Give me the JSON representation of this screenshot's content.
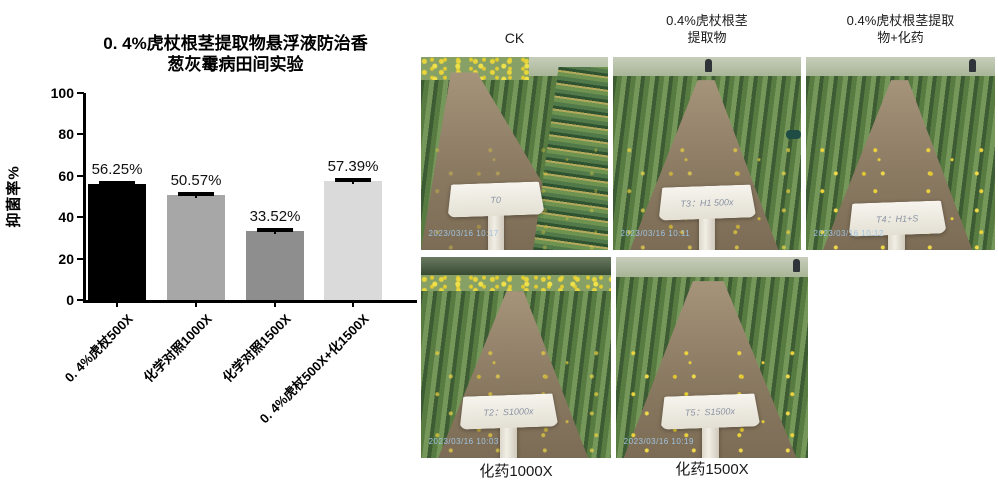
{
  "chart_data": {
    "type": "bar",
    "title": "0. 4%虎杖根茎提取物悬浮液防治香葱灰霉病田间实验",
    "title_lines": [
      "0. 4%虎杖根茎提取物悬浮液防治香",
      "葱灰霉病田间实验"
    ],
    "xlabel": "",
    "ylabel": "抑菌率%",
    "ylim": [
      0,
      100
    ],
    "yticks": [
      0,
      20,
      40,
      60,
      80,
      100
    ],
    "grid": false,
    "legend": "none",
    "categories": [
      "0. 4%虎杖500X",
      "化学对照1000X",
      "化学对照1500X",
      "0. 4%虎杖500X+化1500X"
    ],
    "values": [
      56.25,
      50.57,
      33.52,
      57.39
    ],
    "value_labels": [
      "56.25%",
      "50.57%",
      "33.52%",
      "57.39%"
    ],
    "bar_colors": [
      "#000000",
      "#a7a7a7",
      "#8e8e8e",
      "#dadada"
    ],
    "error_caps": true
  },
  "photos": [
    {
      "caption": "CK",
      "caption_lines": [
        "CK"
      ],
      "tag": "T0",
      "timestamp": "2023/03/16 10:17"
    },
    {
      "caption": "0.4%虎杖根茎提取物",
      "caption_lines": [
        "0.4%虎杖根茎",
        "提取物"
      ],
      "tag": "T3：H1 500x",
      "timestamp": "2023/03/16 10:11"
    },
    {
      "caption": "0.4%虎杖根茎提取物+化药",
      "caption_lines": [
        "0.4%虎杖根茎提取",
        "物+化药"
      ],
      "tag": "T4：H1+S",
      "timestamp": "2023/03/16 10:12"
    },
    {
      "caption": "化药1000X",
      "caption_lines": [
        "化药1000X"
      ],
      "tag": "T2：S1000x",
      "timestamp": "2023/03/16 10:03"
    },
    {
      "caption": "化药1500X",
      "caption_lines": [
        "化药1500X"
      ],
      "tag": "T5：S1500x",
      "timestamp": "2023/03/16 10:19"
    }
  ]
}
